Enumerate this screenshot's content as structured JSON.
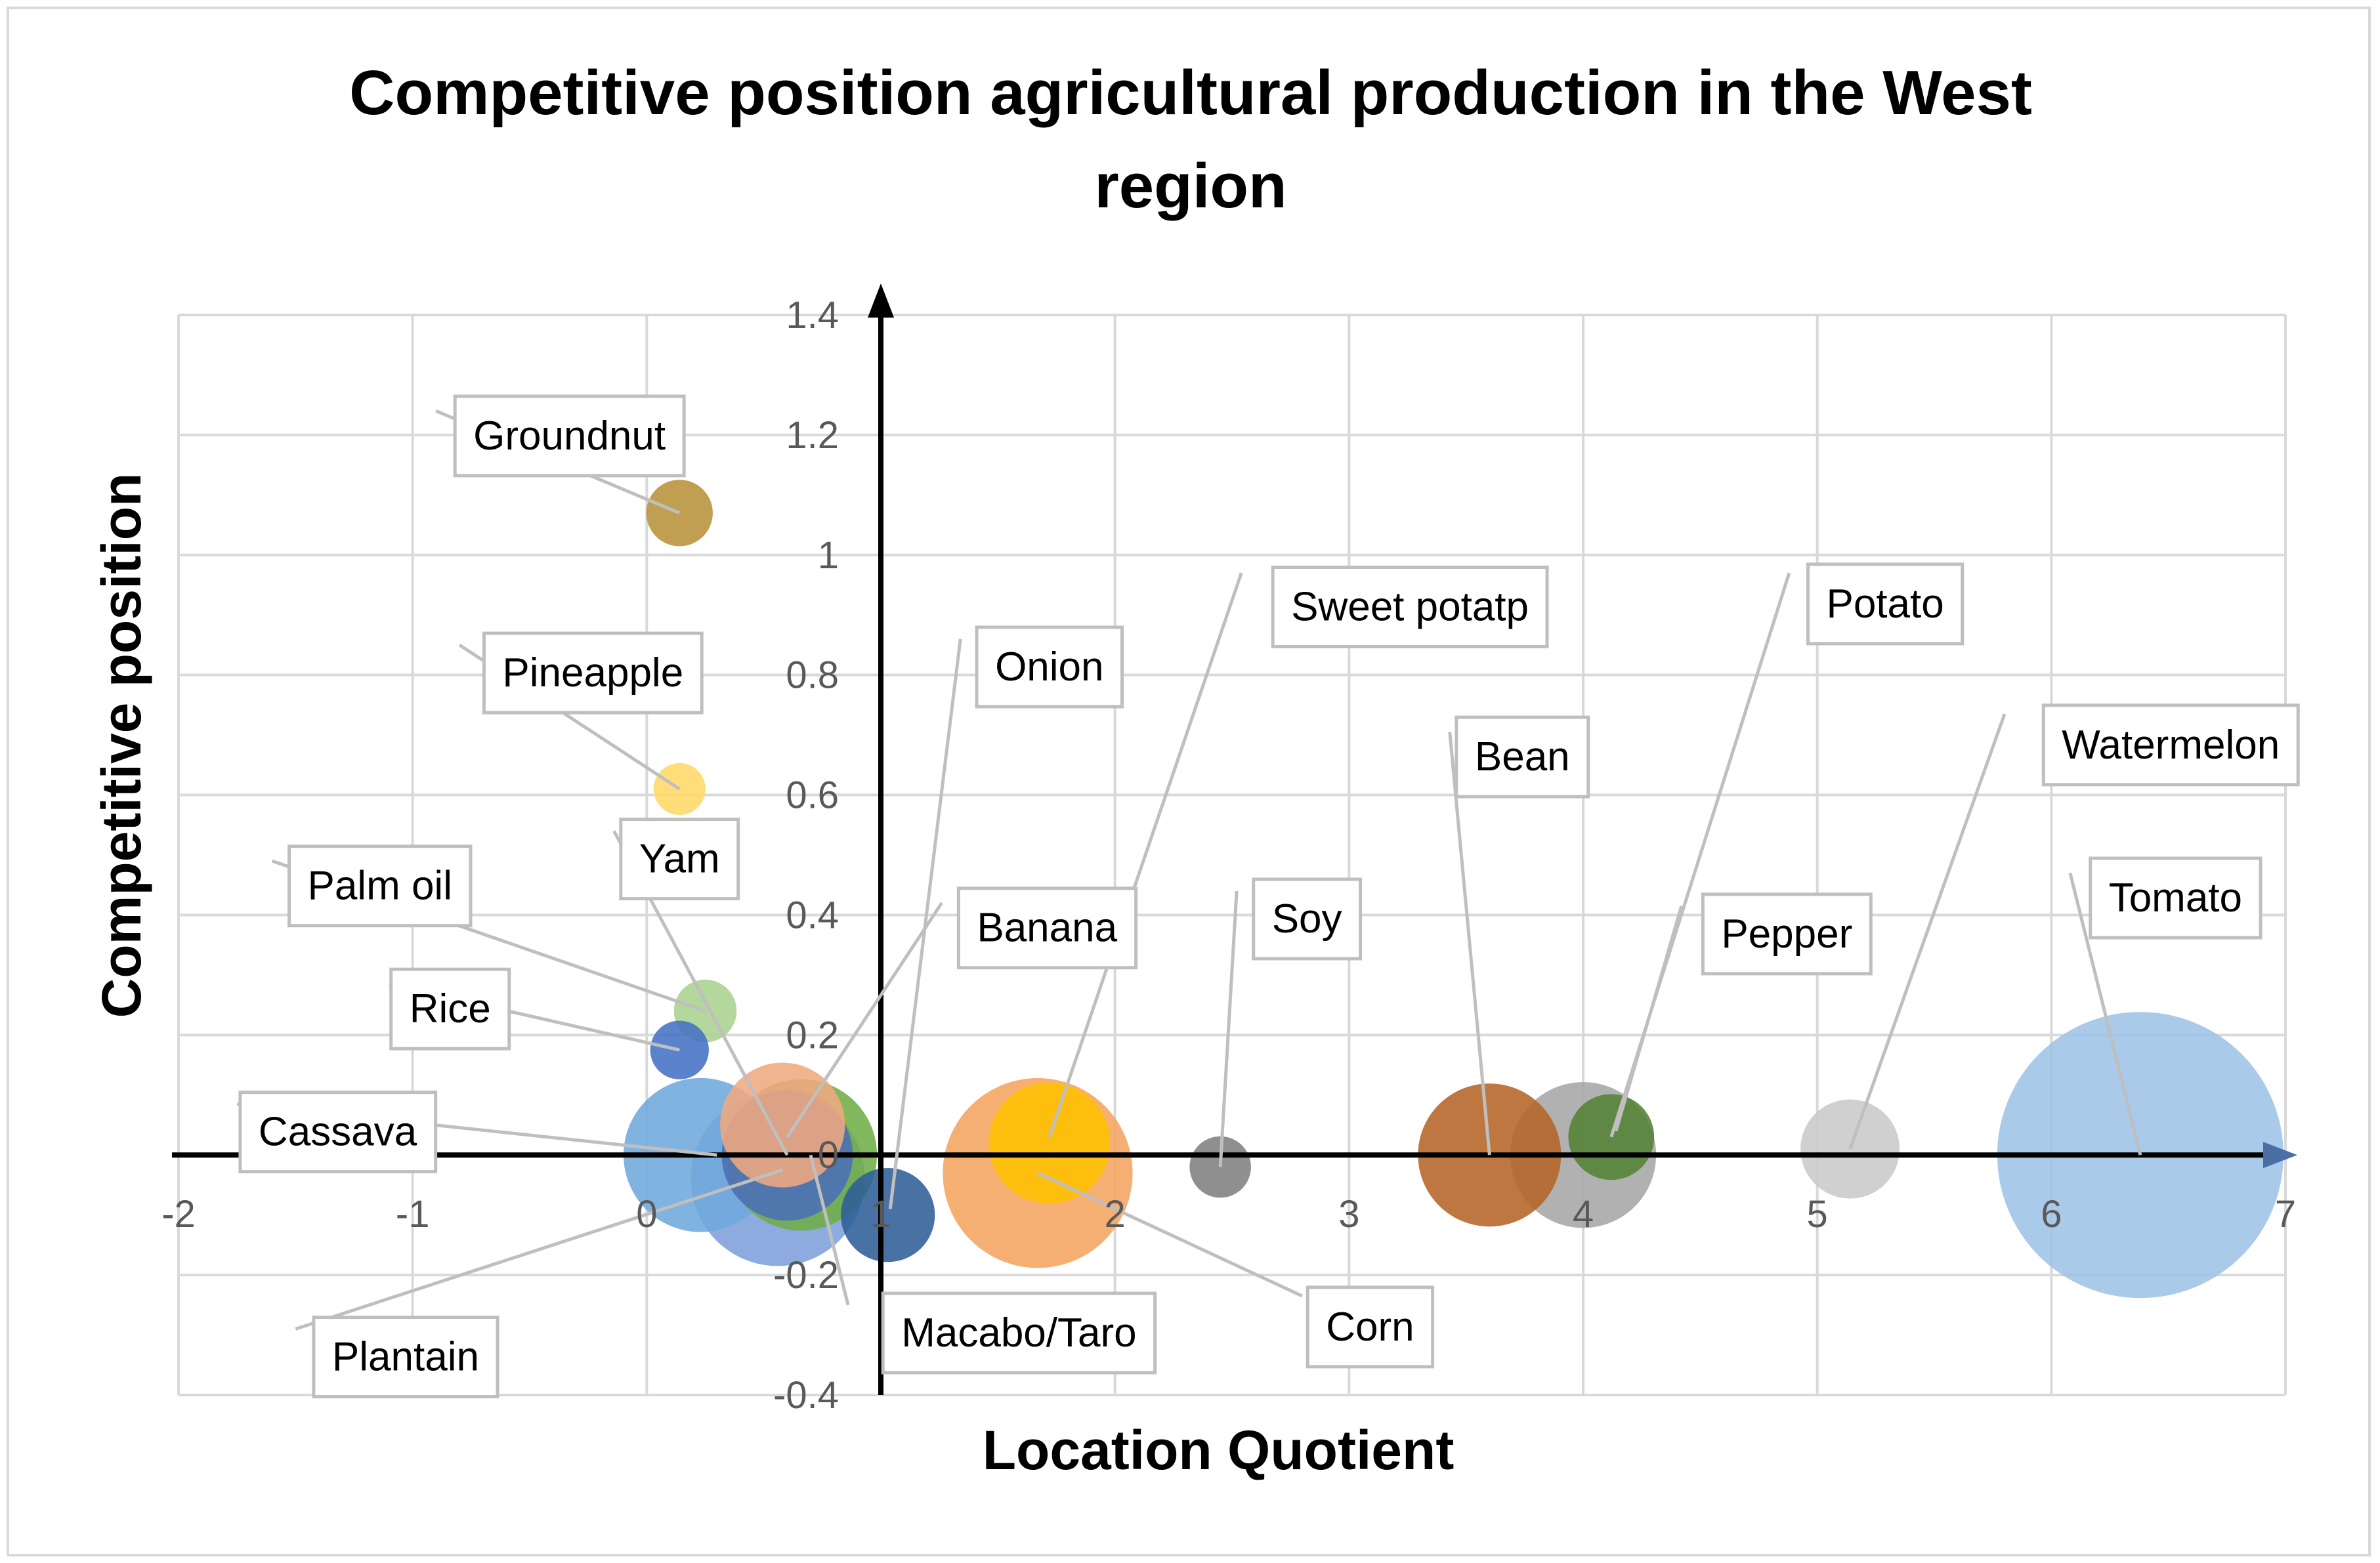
{
  "chart_data": {
    "type": "bubble",
    "title": "Competitive position agricultural production in the West region",
    "title_lines": [
      "Competitive position agricultural production in the West",
      "region"
    ],
    "xlabel": "Location Quotient",
    "ylabel": "Competitive position",
    "xlim": [
      -2,
      7
    ],
    "ylim": [
      -0.4,
      1.4
    ],
    "x_ticks": [
      -2,
      -1,
      0,
      1,
      2,
      3,
      4,
      5,
      6,
      7
    ],
    "y_ticks": [
      -0.4,
      -0.2,
      0,
      0.2,
      0.4,
      0.6,
      0.8,
      1,
      1.2,
      1.4
    ],
    "x_tick_labels": [
      "-2",
      "-1",
      "0",
      "1",
      "2",
      "3",
      "4",
      "5",
      "6",
      "7"
    ],
    "y_tick_labels": [
      "-0.4",
      "-0.2",
      "0",
      "0.2",
      "0.4",
      "0.6",
      "0.8",
      "1",
      "1.2",
      "1.4"
    ],
    "axis_crossing": {
      "x": 1,
      "y": 0
    },
    "grid": true,
    "legend": "none",
    "points": [
      {
        "name": "Tomato",
        "x": 6.38,
        "y": 0.0,
        "size": 1.0,
        "color": "#9dc3e6",
        "label_x": 6.53,
        "label_y": 0.43
      },
      {
        "name": "Plantain",
        "x": 0.56,
        "y": -0.04,
        "size": 0.37,
        "color": "#7e9fdc",
        "label_x": -1.03,
        "label_y": -0.335
      },
      {
        "name": "Corn",
        "x": 1.67,
        "y": -0.03,
        "size": 0.44,
        "color": "#f4a460",
        "label_x": 3.09,
        "label_y": -0.285
      },
      {
        "name": "Macabo/Taro",
        "x": 0.66,
        "y": 0.0,
        "size": 0.28,
        "color": "#70ad47",
        "label_x": 1.59,
        "label_y": -0.295
      },
      {
        "name": "Cassava",
        "x": 0.23,
        "y": 0.0,
        "size": 0.29,
        "color": "#6fa8dc",
        "label_x": -1.32,
        "label_y": 0.04
      },
      {
        "name": "Pepper",
        "x": 4.0,
        "y": 0.0,
        "size": 0.26,
        "color": "#a6a6a6",
        "label_x": 4.87,
        "label_y": 0.37
      },
      {
        "name": "Bean",
        "x": 3.6,
        "y": 0.0,
        "size": 0.25,
        "color": "#b56426",
        "label_x": 3.74,
        "label_y": 0.665
      },
      {
        "name": "Onion",
        "x": 0.6,
        "y": 0.0,
        "size": 0.21,
        "color": "#4a6fb8",
        "label_x": 1.72,
        "label_y": 0.815
      },
      {
        "name": "Banana",
        "x": 0.58,
        "y": 0.05,
        "size": 0.19,
        "color": "#f0a880",
        "label_x": 1.71,
        "label_y": 0.38
      },
      {
        "name": "Sweet potatp",
        "x": 1.72,
        "y": 0.02,
        "size": 0.18,
        "color": "#ffc000",
        "label_x": 3.26,
        "label_y": 0.915
      },
      {
        "name": "Watermelon",
        "x": 5.14,
        "y": 0.01,
        "size": 0.12,
        "color": "#c9c9c9",
        "label_x": 6.51,
        "label_y": 0.685
      },
      {
        "name": "Potato",
        "x": 4.12,
        "y": 0.03,
        "size": 0.09,
        "color": "#548235",
        "label_x": 5.29,
        "label_y": 0.92
      },
      {
        "name": "Soy",
        "x": 2.45,
        "y": -0.02,
        "size": 0.046,
        "color": "#7f7f7f",
        "label_x": 2.82,
        "label_y": 0.395
      },
      {
        "name": "Groundnut",
        "x": 0.14,
        "y": 1.07,
        "size": 0.054,
        "color": "#b8923a",
        "label_x": -0.33,
        "label_y": 1.2
      },
      {
        "name": "Pineapple",
        "x": 0.14,
        "y": 0.61,
        "size": 0.033,
        "color": "#ffd966",
        "label_x": -0.23,
        "label_y": 0.805
      },
      {
        "name": "Yam",
        "x": 0.25,
        "y": 0.24,
        "size": 0.048,
        "color": "#a9d18e",
        "label_x": 0.14,
        "label_y": 0.495
      },
      {
        "name": "Palm oil",
        "x": 0.14,
        "y": 0.175,
        "size": 0.042,
        "color": "#4472c4",
        "label_x": -1.14,
        "label_y": 0.45
      },
      {
        "name": "Rice",
        "x": 0.14,
        "y": 0.175,
        "size": 0.0,
        "color": "#4472c4",
        "label_x": -0.84,
        "label_y": 0.245
      },
      {
        "name": "Macabo/Taro-small",
        "x": 1.03,
        "y": -0.1,
        "size": 0.108,
        "color": "#2e5f96",
        "label_x": null,
        "label_y": null
      }
    ],
    "leaders": [
      {
        "name": "Groundnut",
        "from": [
          -0.9,
          1.24
        ],
        "to": [
          0.14,
          1.07
        ]
      },
      {
        "name": "Pineapple",
        "from": [
          -0.8,
          0.85
        ],
        "to": [
          0.14,
          0.61
        ]
      },
      {
        "name": "Yam",
        "from": [
          -0.14,
          0.54
        ],
        "to": [
          0.6,
          0.0
        ]
      },
      {
        "name": "Palm oil",
        "from": [
          -1.6,
          0.49
        ],
        "to": [
          0.25,
          0.24
        ]
      },
      {
        "name": "Rice",
        "from": [
          -1.1,
          0.285
        ],
        "to": [
          0.14,
          0.175
        ]
      },
      {
        "name": "Cassava",
        "from": [
          -1.75,
          0.085
        ],
        "to": [
          0.3,
          0.0
        ]
      },
      {
        "name": "Plantain",
        "from": [
          -1.5,
          -0.29
        ],
        "to": [
          0.58,
          -0.025
        ]
      },
      {
        "name": "Onion",
        "from": [
          1.34,
          0.86
        ],
        "to": [
          1.04,
          -0.09
        ]
      },
      {
        "name": "Banana",
        "from": [
          1.26,
          0.42
        ],
        "to": [
          0.6,
          0.03
        ]
      },
      {
        "name": "Macabo/Taro",
        "from": [
          0.86,
          -0.25
        ],
        "to": [
          0.7,
          0.0
        ]
      },
      {
        "name": "Sweet potatp",
        "from": [
          2.54,
          0.97
        ],
        "to": [
          1.72,
          0.03
        ]
      },
      {
        "name": "Corn",
        "from": [
          2.8,
          -0.235
        ],
        "to": [
          1.67,
          -0.03
        ]
      },
      {
        "name": "Soy",
        "from": [
          2.52,
          0.44
        ],
        "to": [
          2.45,
          -0.02
        ]
      },
      {
        "name": "Bean",
        "from": [
          3.43,
          0.705
        ],
        "to": [
          3.6,
          0.0
        ]
      },
      {
        "name": "Potato",
        "from": [
          4.88,
          0.97
        ],
        "to": [
          4.12,
          0.03
        ]
      },
      {
        "name": "Pepper",
        "from": [
          4.42,
          0.415
        ],
        "to": [
          4.14,
          0.04
        ]
      },
      {
        "name": "Watermelon",
        "from": [
          5.8,
          0.735
        ],
        "to": [
          5.14,
          0.01
        ]
      },
      {
        "name": "Tomato",
        "from": [
          6.08,
          0.47
        ],
        "to": [
          6.38,
          0.0
        ]
      }
    ]
  }
}
